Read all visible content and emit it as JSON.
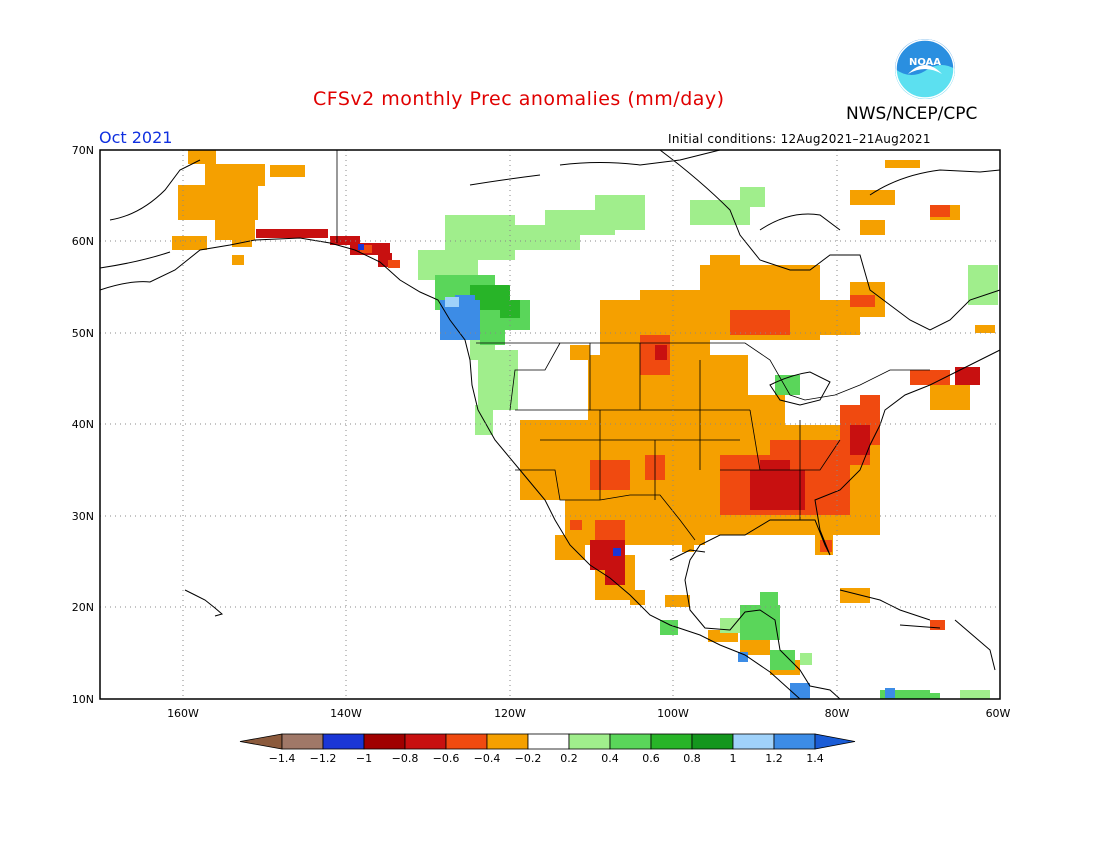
{
  "title": "CFSv2 monthly Prec anomalies (mm/day)",
  "month": "Oct 2021",
  "initial_conditions": "Initial conditions: 12Aug2021–21Aug2021",
  "agency": "NWS/NCEP/CPC",
  "logo_text": "NOAA",
  "lat_labels": [
    "70N",
    "60N",
    "50N",
    "40N",
    "30N",
    "20N",
    "10N"
  ],
  "lon_labels": [
    "160W",
    "140W",
    "120W",
    "100W",
    "80W",
    "60W"
  ],
  "colorbar": {
    "labels": [
      "−1.4",
      "−1.2",
      "−1",
      "−0.8",
      "−0.6",
      "−0.4",
      "−0.2",
      "0.2",
      "0.4",
      "0.6",
      "0.8",
      "1",
      "1.2",
      "1.4"
    ],
    "colors": [
      "#8b5a3c",
      "#a07868",
      "#1a36d6",
      "#a00000",
      "#c81010",
      "#f04a10",
      "#f5a000",
      "#ffffff",
      "#a0ee8c",
      "#5ad65a",
      "#28b428",
      "#14961e",
      "#a0d2fa",
      "#3c8ce6",
      "#1a5cd6"
    ]
  },
  "colors": {
    "dry_strong": "#c81010",
    "dry_medium": "#f04a10",
    "dry_light": "#f5a000",
    "wet_light": "#a0ee8c",
    "wet_medium": "#5ad65a",
    "wet_strong": "#28b428",
    "wet_extreme": "#3c8ce6",
    "title": "#e00000",
    "month": "#1030e0"
  }
}
